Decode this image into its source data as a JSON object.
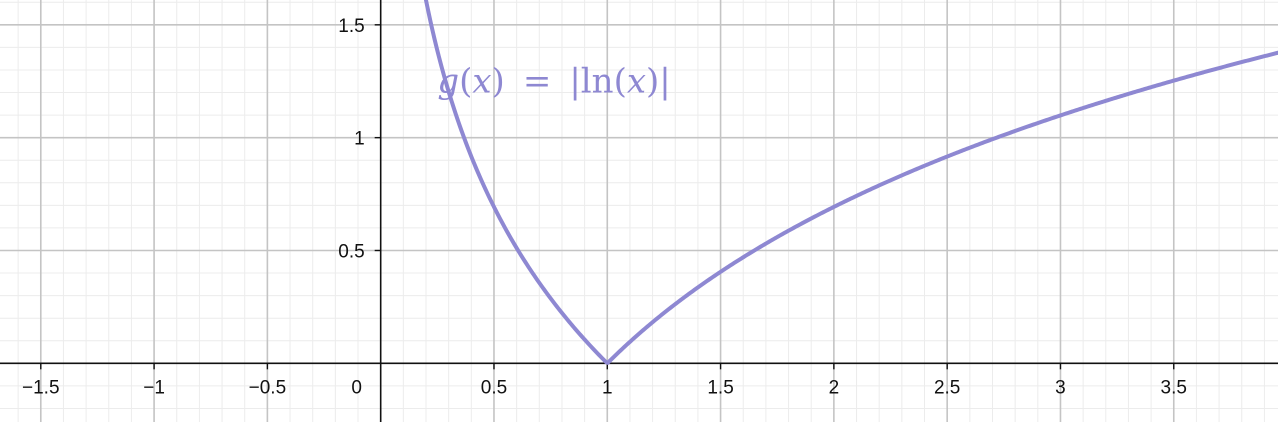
{
  "chart_data": {
    "type": "line",
    "title": "",
    "xlabel": "",
    "ylabel": "",
    "xlim": [
      -1.68,
      3.96
    ],
    "ylim": [
      -0.26,
      1.61
    ],
    "grid": true,
    "x_ticks": [
      {
        "value": -1.5,
        "label": "−1.5"
      },
      {
        "value": -1,
        "label": "−1"
      },
      {
        "value": -0.5,
        "label": "−0.5"
      },
      {
        "value": 0.5,
        "label": "0.5"
      },
      {
        "value": 1,
        "label": "1"
      },
      {
        "value": 1.5,
        "label": "1.5"
      },
      {
        "value": 2,
        "label": "2"
      },
      {
        "value": 2.5,
        "label": "2.5"
      },
      {
        "value": 3,
        "label": "3"
      },
      {
        "value": 3.5,
        "label": "3.5"
      }
    ],
    "y_ticks": [
      {
        "value": 0.5,
        "label": "0.5"
      },
      {
        "value": 1,
        "label": "1"
      },
      {
        "value": 1.5,
        "label": "1.5"
      }
    ],
    "origin_label": "0",
    "series": [
      {
        "color": "#8e88d2",
        "function": "abs(ln(x))",
        "x": [
          0.2,
          0.25,
          0.3,
          0.4,
          0.5,
          0.6,
          0.7,
          0.8,
          0.9,
          1.0,
          1.25,
          1.5,
          2.0,
          2.5,
          3.0,
          3.5,
          3.96
        ],
        "y": [
          1.609,
          1.386,
          1.204,
          0.916,
          0.693,
          0.511,
          0.357,
          0.223,
          0.105,
          0.0,
          0.223,
          0.405,
          0.693,
          0.916,
          1.099,
          1.253,
          1.376
        ]
      }
    ],
    "annotation": {
      "lhs_fn": "g",
      "lhs_paren_open": "(",
      "lhs_var": "x",
      "lhs_paren_close": ")",
      "equals": "=",
      "bar_open": "|",
      "fn": "ln",
      "paren_open": "(",
      "arg": "x",
      "paren_close": ")",
      "bar_close": "|",
      "anchor_x": 0.25,
      "anchor_y": 1.2,
      "color": "#8e88d2"
    }
  }
}
